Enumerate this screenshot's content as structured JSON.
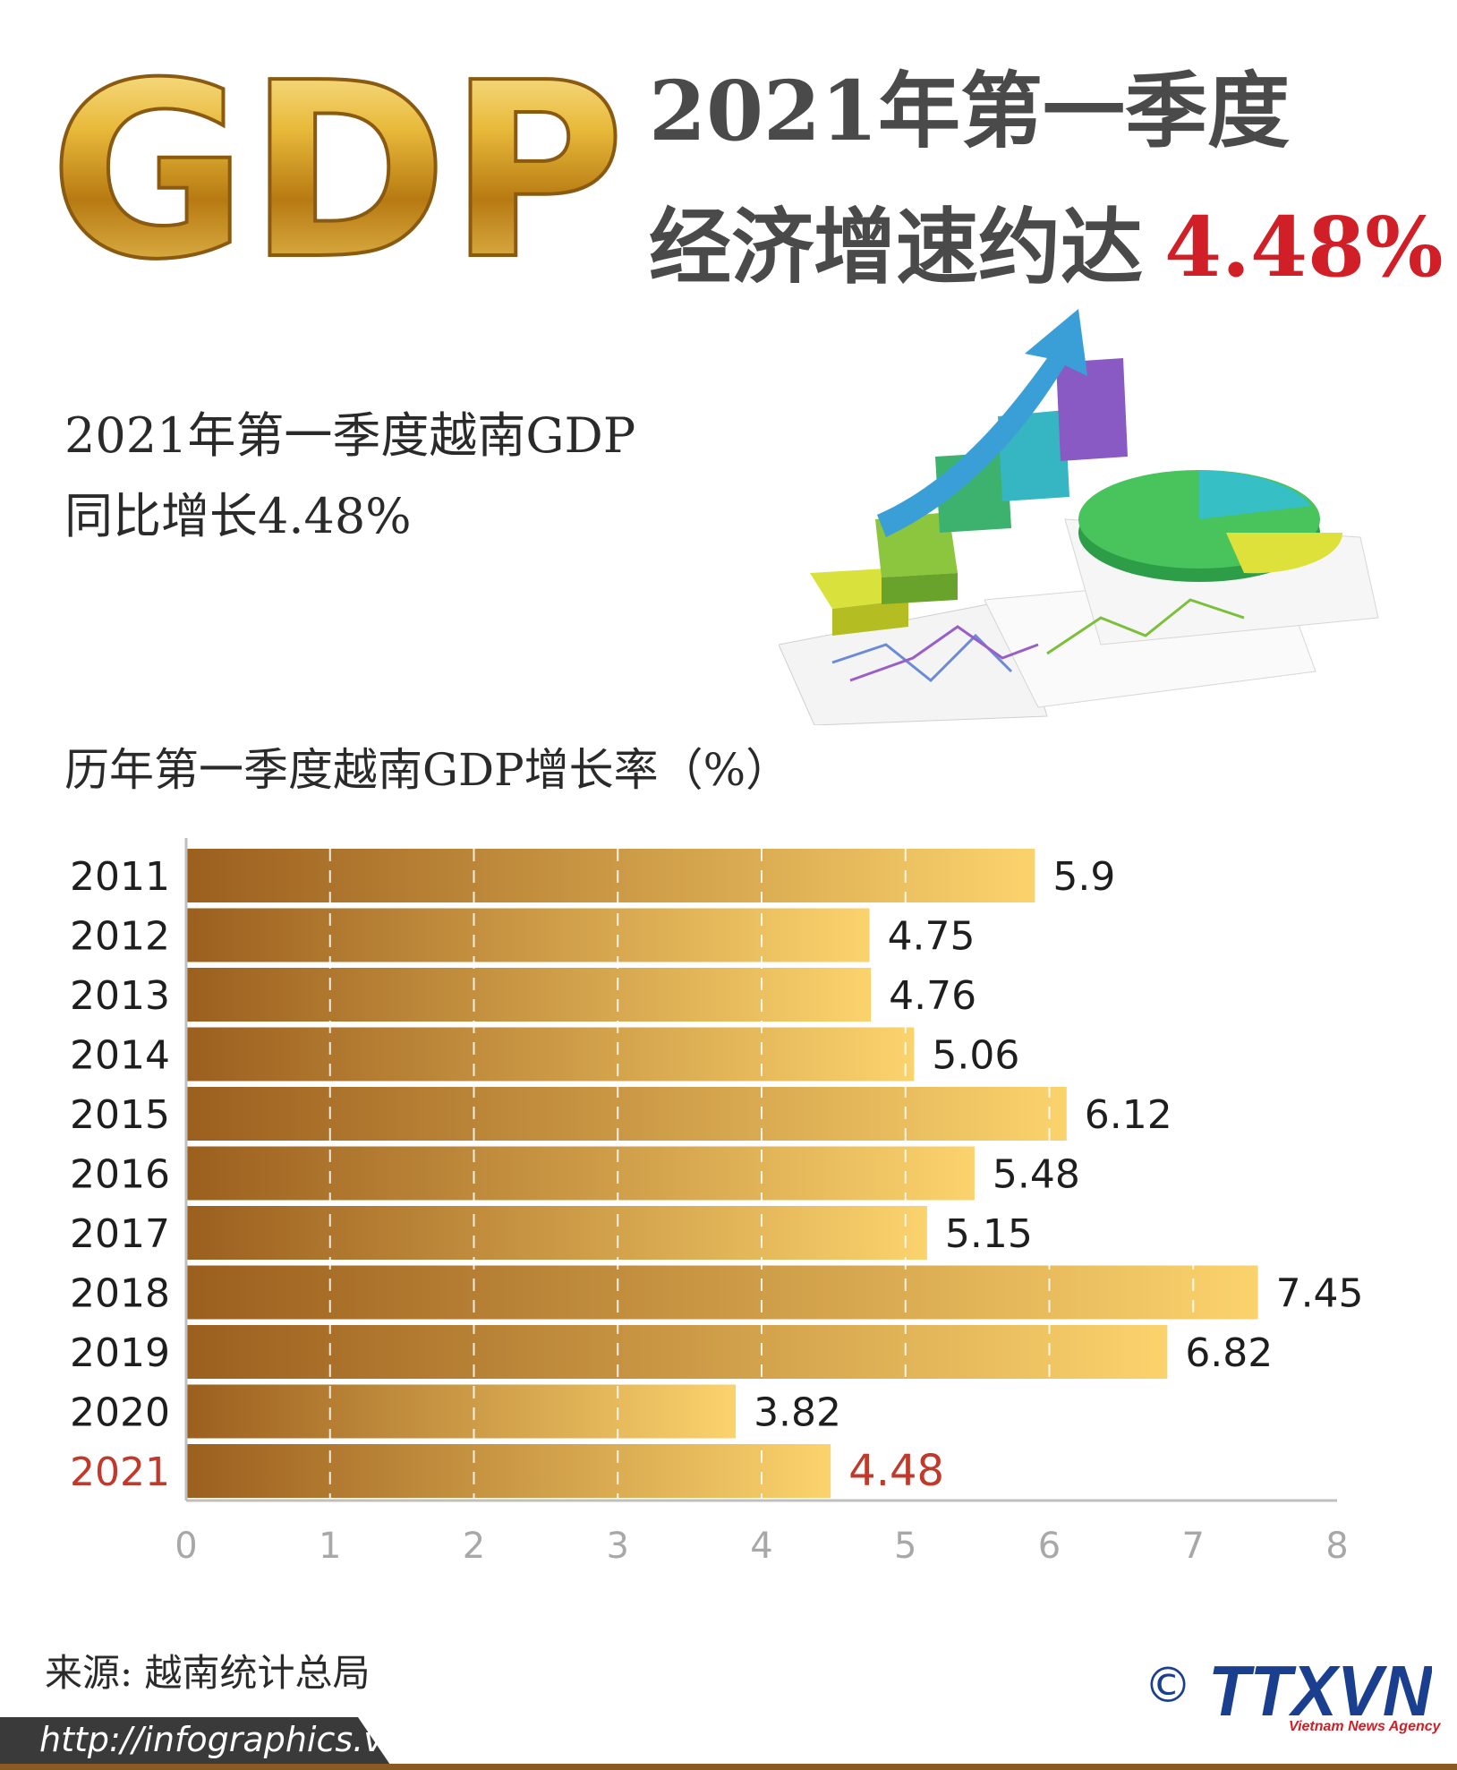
{
  "header": {
    "logo_text": "GDP",
    "title_line1": "2021年第一季度",
    "title_line2": "经济增速约达",
    "title_highlight": "4.48%"
  },
  "summary": {
    "line1": "2021年第一季度越南GDP",
    "line2": "同比增长4.48%"
  },
  "chart_data": {
    "type": "bar",
    "orientation": "horizontal",
    "title": "历年第一季度越南GDP增长率（%）",
    "categories": [
      "2011",
      "2012",
      "2013",
      "2014",
      "2015",
      "2016",
      "2017",
      "2018",
      "2019",
      "2020",
      "2021"
    ],
    "values": [
      5.9,
      4.75,
      4.76,
      5.06,
      6.12,
      5.48,
      5.15,
      7.45,
      6.82,
      3.82,
      4.48
    ],
    "value_labels": [
      "5.9",
      "4.75",
      "4.76",
      "5.06",
      "6.12",
      "5.48",
      "5.15",
      "7.45",
      "6.82",
      "3.82",
      "4.48"
    ],
    "highlight_category": "2021",
    "xlim": [
      0,
      8
    ],
    "x_ticks": [
      "0",
      "1",
      "2",
      "3",
      "4",
      "5",
      "6",
      "7",
      "8"
    ],
    "grid": "vertical dashed",
    "colors": {
      "bar_dark": "#9b5f1e",
      "bar_light": "#fbd36d",
      "highlight_text": "#c0392b",
      "tick_text": "#a8a8a8"
    }
  },
  "footer": {
    "source": "来源: 越南统计总局",
    "url": "http://infographics.vn",
    "copyright_symbol": "©",
    "agency_logo": "TTXVN",
    "agency_sub": "Vietnam News Agency"
  }
}
